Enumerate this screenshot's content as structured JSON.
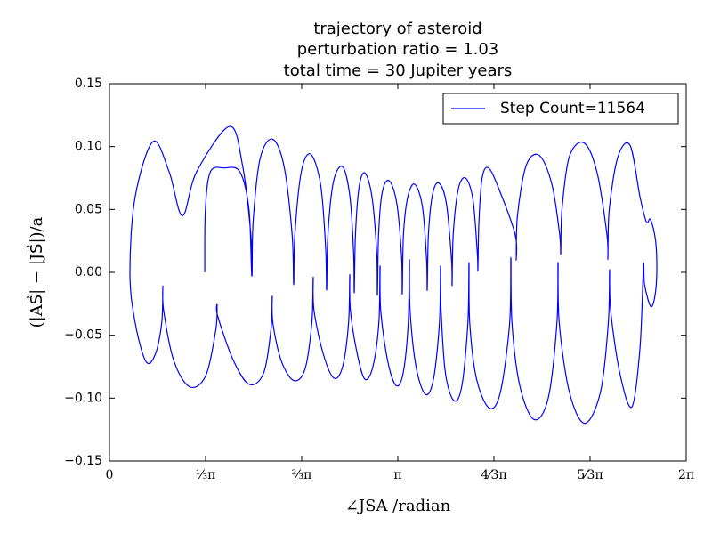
{
  "chart_data": {
    "type": "line",
    "title": [
      "trajectory of asteroid",
      "perturbation ratio = 1.03",
      "total time = 30 Jupiter years"
    ],
    "x_label": "∠JSA /radian",
    "y_label": "(|AS⃗| − |JS⃗|)/a",
    "xlim": [
      0,
      6.2832
    ],
    "ylim": [
      -0.15,
      0.15
    ],
    "xticks": [
      0,
      {
        "value": 1.0472,
        "label": "⅓π"
      },
      {
        "value": 2.0944,
        "label": "⅔π"
      },
      {
        "value": 3.1416,
        "label": "π"
      },
      {
        "value": 4.1888,
        "label": "4⁄3π"
      },
      {
        "value": 5.236,
        "label": "5⁄3π"
      },
      {
        "value": 6.2832,
        "label": "2π"
      }
    ],
    "yticks": [
      0.15,
      {
        "value": 0.1,
        "label": "0.10"
      },
      0.05,
      {
        "value": 0,
        "label": "0.00"
      },
      {
        "value": -0.05,
        "label": "−0.05"
      },
      {
        "value": -0.1,
        "label": "−0.10"
      },
      {
        "value": -0.15,
        "label": "−0.15"
      }
    ],
    "grid": false,
    "legend": "upper right",
    "series": [
      {
        "name": "Step Count=11564",
        "color": "#0000ff",
        "x": [
          1.038,
          1.045,
          1.1,
          1.25,
          1.42,
          1.52,
          1.551,
          1.565,
          1.64,
          1.774,
          1.9,
          1.99,
          2.007,
          2.02,
          2.09,
          2.191,
          2.3,
          2.355,
          2.366,
          2.38,
          2.44,
          2.54,
          2.62,
          2.66,
          2.667,
          2.68,
          2.72,
          2.783,
          2.86,
          2.912,
          2.919,
          2.932,
          2.97,
          3.045,
          3.13,
          3.183,
          3.19,
          3.203,
          3.25,
          3.326,
          3.41,
          3.455,
          3.462,
          3.475,
          3.52,
          3.588,
          3.67,
          3.727,
          3.733,
          3.745,
          3.8,
          3.879,
          3.96,
          4.008,
          4.014,
          4.025,
          4.06,
          4.131,
          4.25,
          4.42,
          4.431,
          4.445,
          4.54,
          4.683,
          4.82,
          4.905,
          4.916,
          4.93,
          5.01,
          5.168,
          5.31,
          5.42,
          5.43,
          5.445,
          5.54,
          5.672,
          5.78,
          5.85,
          5.895,
          5.95,
          5.963,
          5.94,
          5.895,
          5.83,
          5.818,
          5.78,
          5.691,
          5.56,
          5.46,
          5.449,
          5.435,
          5.35,
          5.178,
          5.01,
          4.9,
          4.887,
          4.875,
          4.78,
          4.625,
          4.47,
          4.385,
          4.373,
          4.36,
          4.26,
          4.14,
          4.0,
          3.925,
          3.917,
          3.905,
          3.84,
          3.753,
          3.66,
          3.613,
          3.607,
          3.595,
          3.53,
          3.442,
          3.34,
          3.275,
          3.268,
          3.255,
          3.2,
          3.122,
          3.03,
          2.955,
          2.948,
          2.935,
          2.87,
          2.783,
          2.7,
          2.625,
          2.618,
          2.605,
          2.54,
          2.444,
          2.33,
          2.228,
          2.22,
          2.205,
          2.13,
          2.007,
          1.87,
          1.78,
          1.774,
          1.76,
          1.68,
          1.522,
          1.35,
          1.18,
          1.173,
          1.16,
          1.05,
          0.873,
          0.7,
          0.59,
          0.582,
          0.57,
          0.5,
          0.398,
          0.28,
          0.223,
          0.28,
          0.475,
          0.65,
          0.795,
          0.95,
          1.309,
          1.45,
          1.54,
          1.551
        ],
        "values": [
          0.0,
          0.05,
          0.08,
          0.083,
          0.08,
          0.05,
          -0.003,
          0.04,
          0.09,
          0.106,
          0.085,
          0.03,
          -0.01,
          0.03,
          0.08,
          0.094,
          0.07,
          0.02,
          -0.014,
          0.03,
          0.072,
          0.084,
          0.06,
          0.015,
          -0.016,
          0.03,
          0.068,
          0.079,
          0.06,
          0.015,
          -0.018,
          0.03,
          0.063,
          0.073,
          0.055,
          0.012,
          -0.017,
          0.03,
          0.06,
          0.07,
          0.052,
          0.01,
          -0.014,
          0.03,
          0.062,
          0.071,
          0.055,
          0.01,
          -0.01,
          0.03,
          0.066,
          0.075,
          0.058,
          0.015,
          0.002,
          0.04,
          0.075,
          0.083,
          0.065,
          0.03,
          0.01,
          0.045,
          0.085,
          0.093,
          0.07,
          0.03,
          0.015,
          0.05,
          0.092,
          0.103,
          0.08,
          0.03,
          0.011,
          0.05,
          0.092,
          0.101,
          0.06,
          0.04,
          0.042,
          0.025,
          0.0,
          -0.02,
          -0.027,
          -0.01,
          0.005,
          -0.06,
          -0.107,
          -0.08,
          -0.03,
          0.002,
          -0.04,
          -0.095,
          -0.12,
          -0.095,
          -0.04,
          0.008,
          -0.04,
          -0.1,
          -0.117,
          -0.09,
          -0.04,
          0.012,
          -0.04,
          -0.095,
          -0.108,
          -0.085,
          -0.04,
          0.008,
          -0.04,
          -0.09,
          -0.102,
          -0.08,
          -0.03,
          0.005,
          -0.04,
          -0.085,
          -0.097,
          -0.075,
          -0.03,
          0.01,
          -0.04,
          -0.08,
          -0.09,
          -0.07,
          -0.03,
          0.005,
          -0.04,
          -0.075,
          -0.085,
          -0.065,
          -0.03,
          -0.002,
          -0.04,
          -0.075,
          -0.084,
          -0.065,
          -0.03,
          -0.004,
          -0.04,
          -0.077,
          -0.086,
          -0.07,
          -0.04,
          -0.019,
          -0.045,
          -0.08,
          -0.089,
          -0.07,
          -0.035,
          -0.026,
          -0.045,
          -0.082,
          -0.091,
          -0.07,
          -0.03,
          -0.011,
          -0.04,
          -0.065,
          -0.071,
          -0.04,
          0.0,
          0.06,
          0.104,
          0.08,
          0.045,
          0.08,
          0.116,
          0.085,
          0.03,
          0.0
        ]
      }
    ]
  }
}
